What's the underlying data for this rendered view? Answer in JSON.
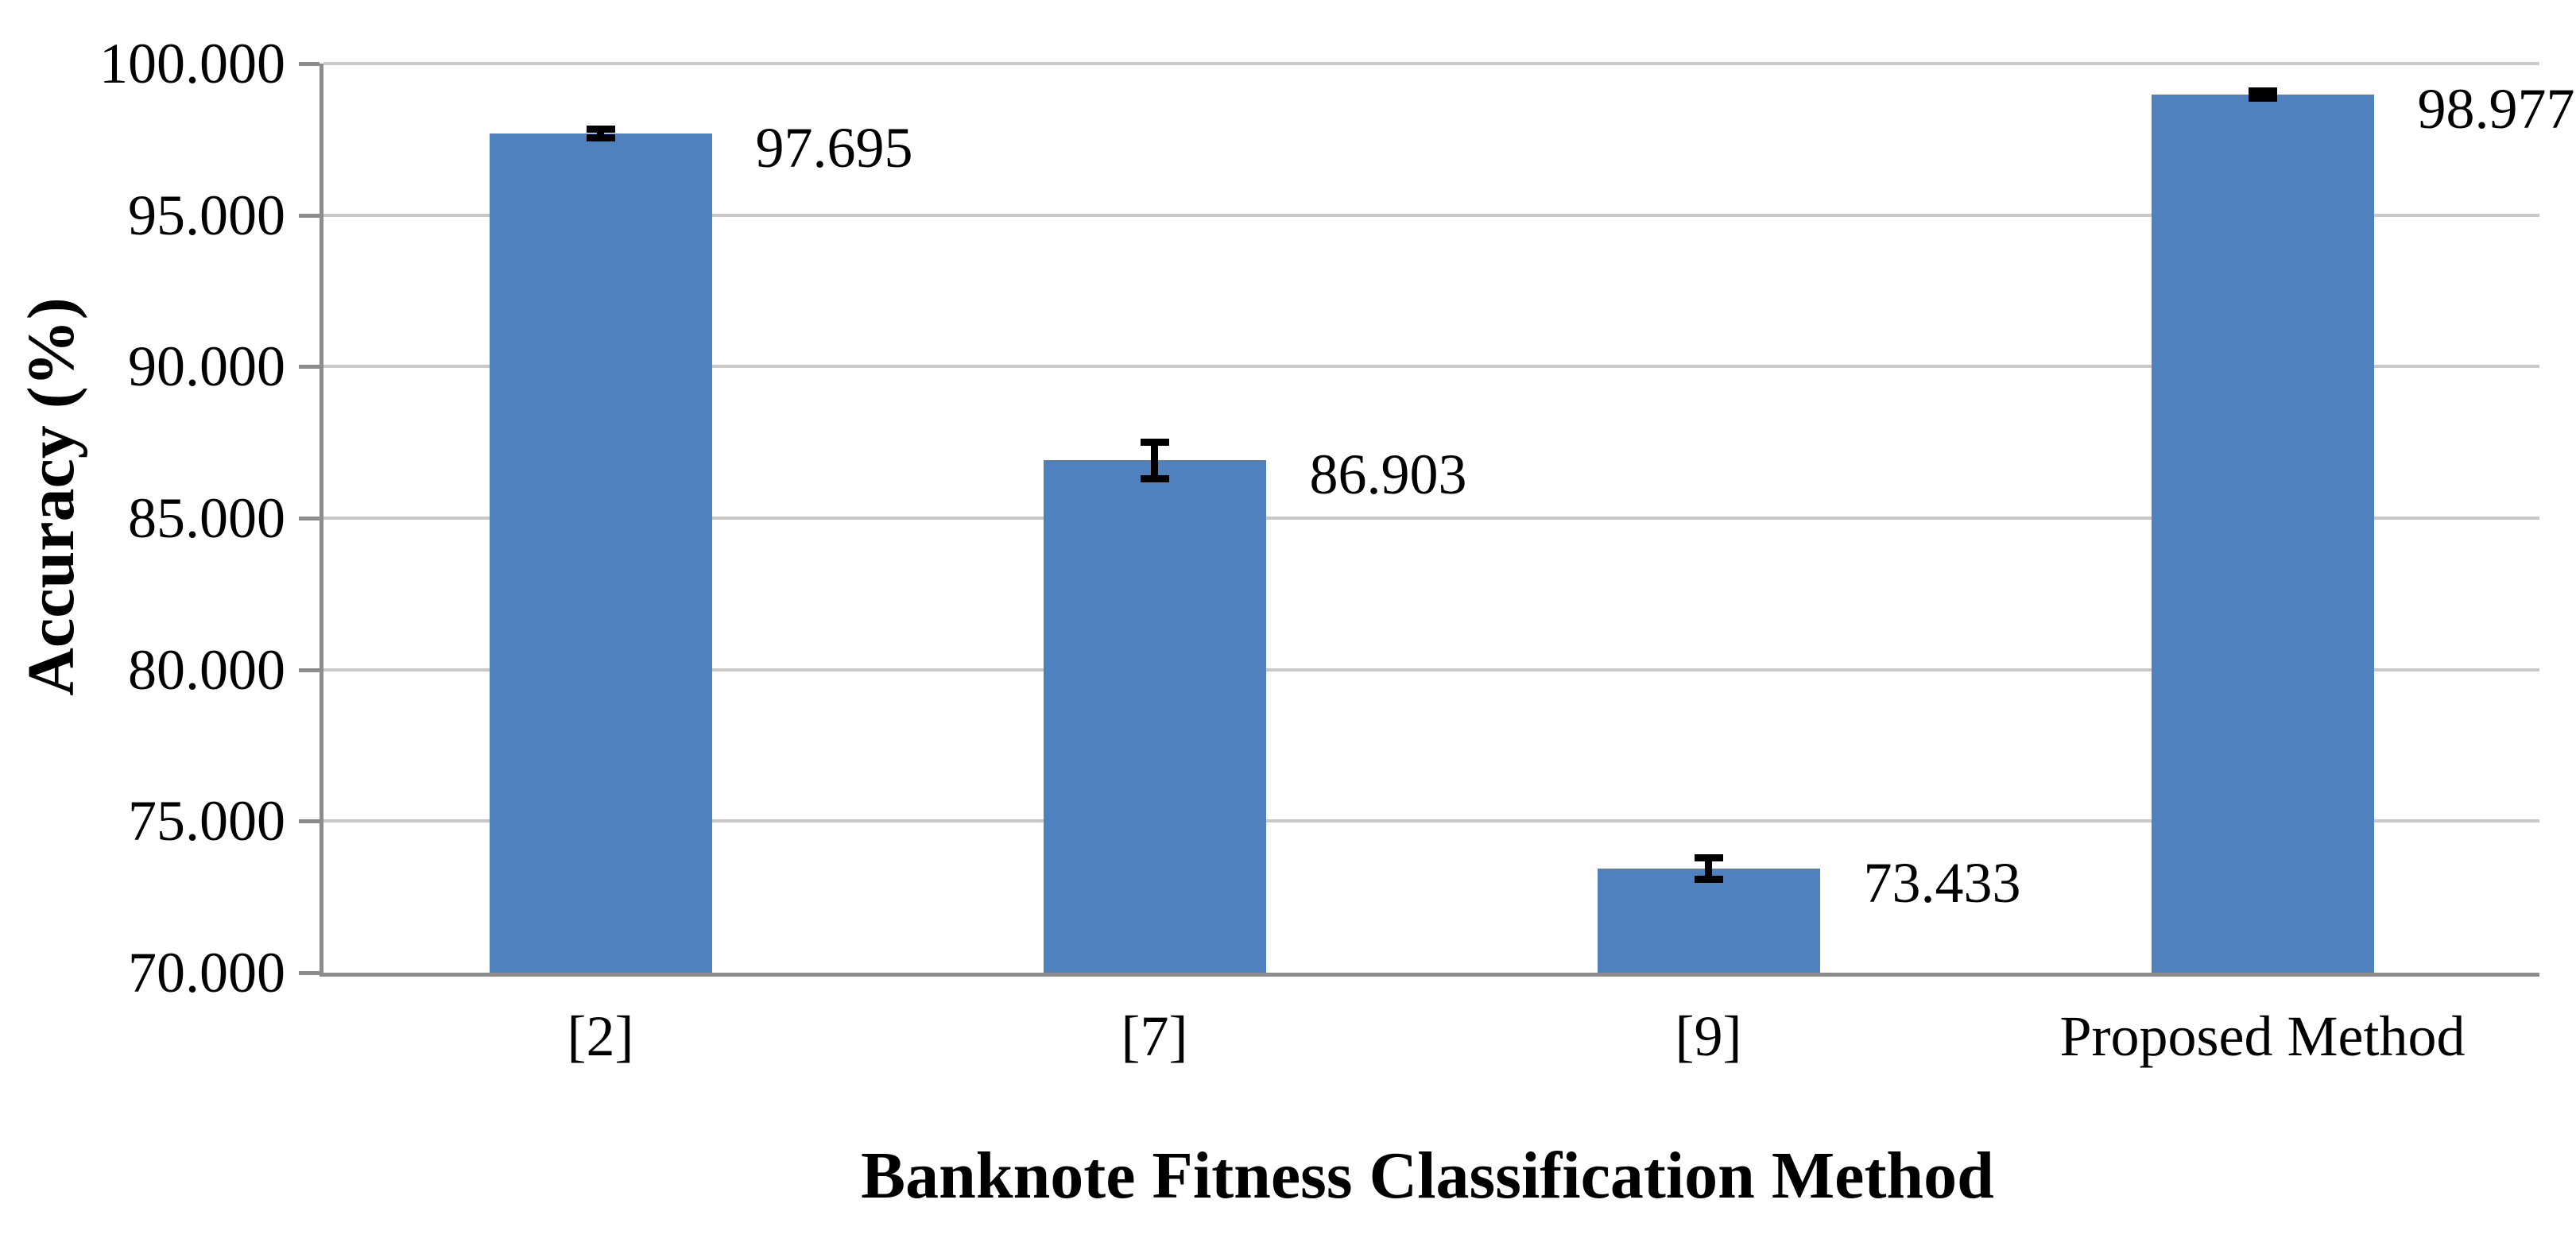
{
  "chart_data": {
    "type": "bar",
    "title": "",
    "xlabel": "Banknote Fitness Classification Method",
    "ylabel": "Accuracy (%)",
    "categories": [
      "[2]",
      "[7]",
      "[9]",
      "Proposed Method"
    ],
    "series": [
      {
        "name": "Accuracy",
        "values": [
          97.695,
          86.903,
          73.433,
          98.977
        ]
      }
    ],
    "data_labels": [
      "97.695",
      "86.903",
      "73.433",
      "98.977"
    ],
    "error_bars": [
      0.15,
      0.6,
      0.35,
      0.12
    ],
    "ylim": [
      70,
      100
    ],
    "y_tick_step": 5,
    "y_tick_labels": [
      "70.000",
      "75.000",
      "80.000",
      "85.000",
      "90.000",
      "95.000",
      "100.000"
    ],
    "grid": true,
    "legend": false,
    "bar_color": "#4E81BD",
    "error_color": "#000000",
    "gridline_color": "#C9C9C9",
    "axis_color": "#8C8C8C",
    "text_color": "#000000",
    "background": "#FFFFFF"
  }
}
